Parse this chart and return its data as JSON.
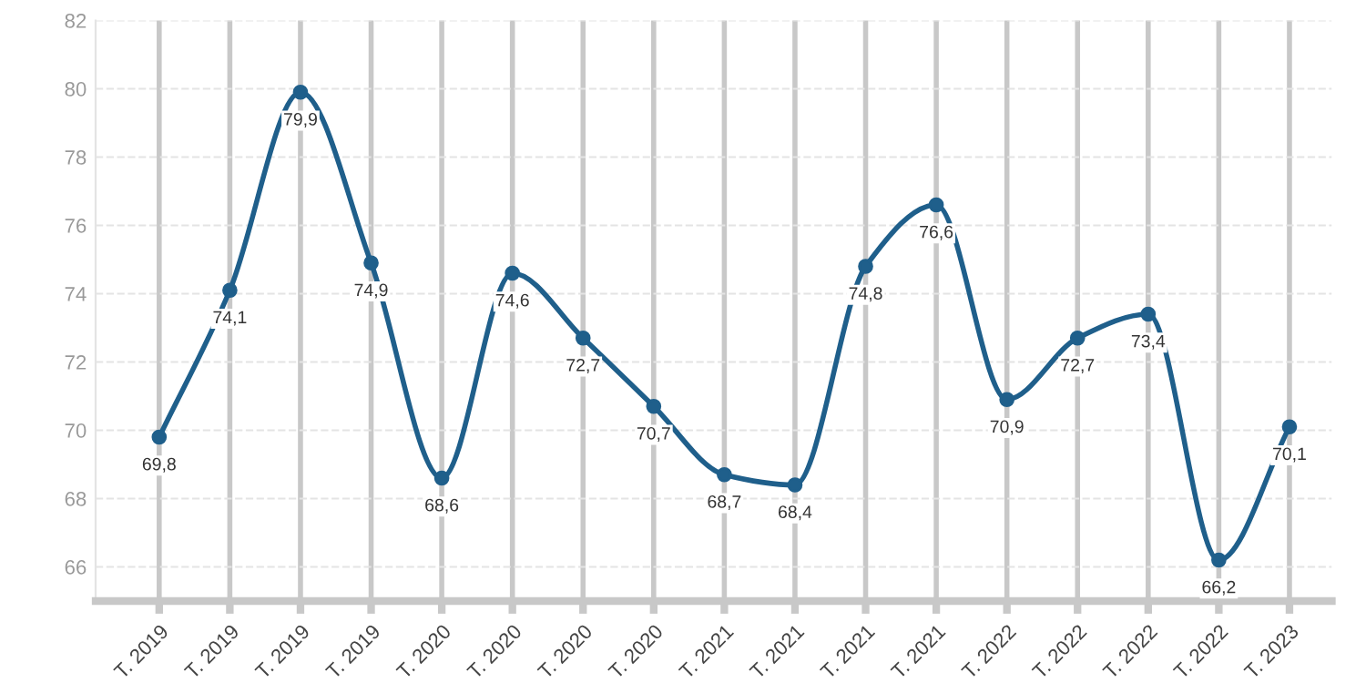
{
  "chart_data": {
    "type": "line",
    "categories": [
      "T. 2019",
      "T. 2019",
      "T. 2019",
      "T. 2019",
      "T. 2020",
      "T. 2020",
      "T. 2020",
      "T. 2020",
      "T. 2021",
      "T. 2021",
      "T. 2021",
      "T. 2021",
      "T. 2022",
      "T. 2022",
      "T. 2022",
      "T. 2022",
      "T. 2023"
    ],
    "series": [
      {
        "color": "#1f5f8b",
        "values": [
          69.8,
          74.1,
          79.9,
          74.9,
          68.6,
          74.6,
          72.7,
          70.7,
          68.7,
          68.4,
          74.8,
          76.6,
          70.9,
          72.7,
          73.4,
          66.2,
          70.1
        ],
        "value_labels": [
          "69,8",
          "74,1",
          "79,9",
          "74,9",
          "68,6",
          "74,6",
          "72,7",
          "70,7",
          "68,7",
          "68,4",
          "74,8",
          "76,6",
          "70,9",
          "72,7",
          "73,4",
          "66,2",
          "70,1"
        ]
      }
    ],
    "ylim": [
      65,
      82
    ],
    "yticks": [
      66,
      68,
      70,
      72,
      74,
      76,
      78,
      80,
      82
    ],
    "grid": true,
    "marker": "circle",
    "line_style": "solid"
  }
}
